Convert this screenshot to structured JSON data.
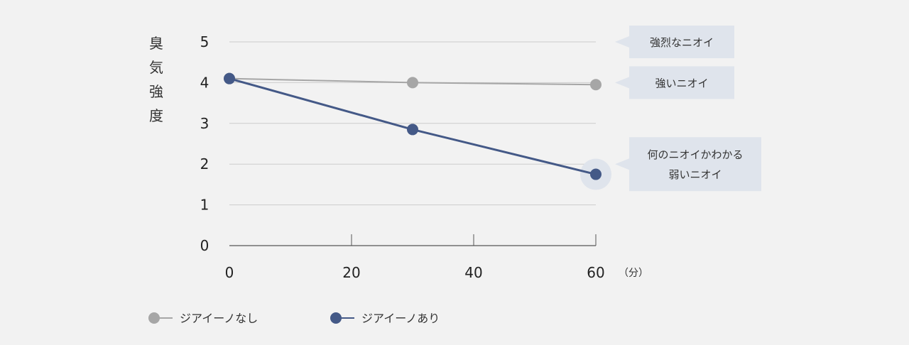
{
  "chart_data": {
    "type": "line",
    "ylabel": "臭気強度",
    "xlabel": "",
    "x_unit": "（分）",
    "xlim": [
      0,
      60
    ],
    "ylim": [
      0,
      5
    ],
    "x_ticks": [
      0,
      20,
      40,
      60
    ],
    "y_ticks": [
      0,
      1,
      2,
      3,
      4,
      5
    ],
    "grid": true,
    "series": [
      {
        "name": "ジアイーノなし",
        "color": "#a6a6a6",
        "points": [
          {
            "x": 0,
            "y": 4.1
          },
          {
            "x": 30,
            "y": 4.0
          },
          {
            "x": 60,
            "y": 3.95
          }
        ]
      },
      {
        "name": "ジアイーノあり",
        "color": "#445987",
        "points": [
          {
            "x": 0,
            "y": 4.1
          },
          {
            "x": 30,
            "y": 2.85
          },
          {
            "x": 60,
            "y": 1.75
          }
        ]
      }
    ],
    "annotations": [
      {
        "level": 5,
        "lines": [
          "強烈なニオイ"
        ]
      },
      {
        "level": 4,
        "lines": [
          "強いニオイ"
        ]
      },
      {
        "level": 2,
        "lines": [
          "何のニオイかわかる",
          "弱いニオイ"
        ]
      }
    ],
    "legend_position": "bottom-left"
  },
  "colors": {
    "background": "#f2f2f2",
    "grid": "#cccccc",
    "axis": "#555555",
    "callout": "#dfe4ec",
    "halo": "#dfe4ec"
  }
}
